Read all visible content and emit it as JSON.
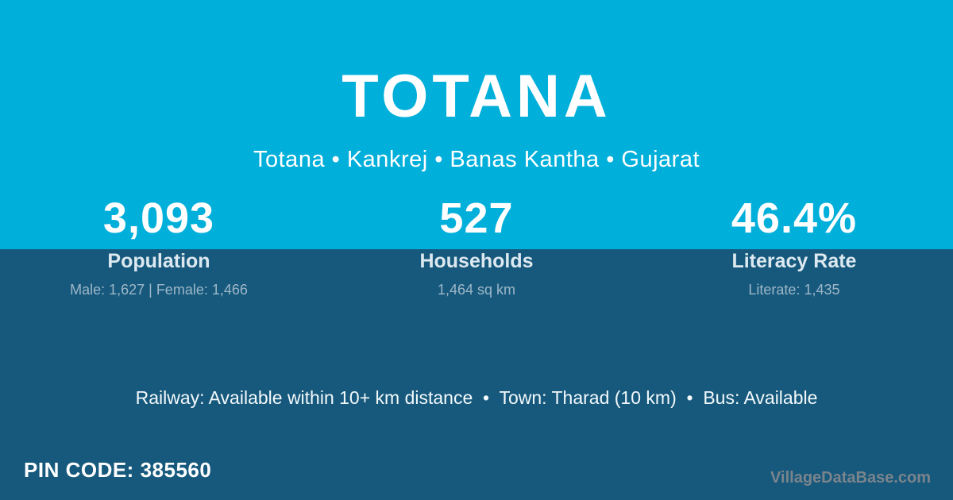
{
  "colors": {
    "top_background": "#00AFDA",
    "bottom_background": "#17597D",
    "title_text": "#FFFFFF",
    "stat_label_text": "#DCE9F0",
    "stat_detail_text": "#9DB7C7",
    "info_line_text": "#F2F9FB",
    "watermark_text": "#7B848C"
  },
  "header": {
    "title": "TOTANA",
    "subtitle": "Totana • Kankrej • Banas Kantha • Gujarat"
  },
  "stats": [
    {
      "value": "3,093",
      "label": "Population",
      "detail": "Male: 1,627 | Female: 1,466"
    },
    {
      "value": "527",
      "label": "Households",
      "detail": "1,464 sq km"
    },
    {
      "value": "46.4%",
      "label": "Literacy Rate",
      "detail": "Literate: 1,435"
    }
  ],
  "info_line": "Railway: Available within 10+ km distance  •  Town: Tharad (10 km)  •  Bus: Available",
  "footer": {
    "pin_code": "PIN CODE: 385560",
    "watermark": "VillageDataBase.com"
  }
}
